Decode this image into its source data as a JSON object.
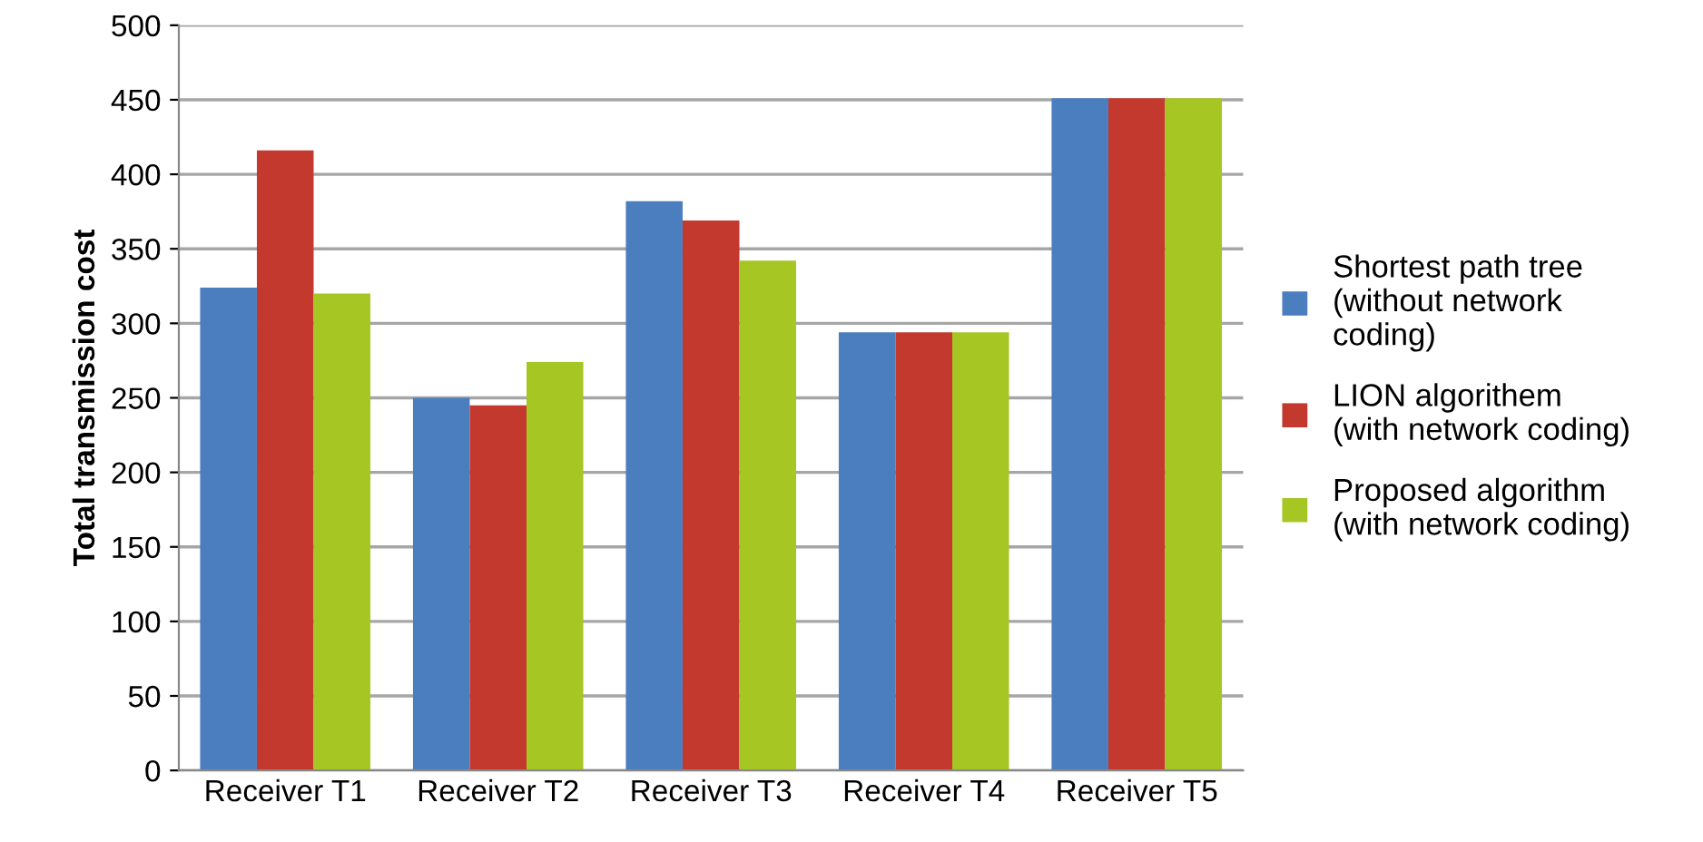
{
  "chart_data": {
    "type": "bar",
    "ylabel": "Total transmission cost",
    "categories": [
      "Receiver T1",
      "Receiver T2",
      "Receiver T3",
      "Receiver T4",
      "Receiver T5"
    ],
    "series": [
      {
        "name": "Shortest path tree\n(without network\ncoding)",
        "color": "#4a7ebf",
        "values": [
          324,
          250,
          382,
          294,
          451
        ]
      },
      {
        "name": "LION algorithem\n(with network coding)",
        "color": "#c4392e",
        "values": [
          416,
          245,
          369,
          294,
          451
        ]
      },
      {
        "name": "Proposed algorithm\n(with network coding)",
        "color": "#a6c623",
        "values": [
          320,
          274,
          342,
          294,
          451
        ]
      }
    ],
    "ylim": [
      0,
      500
    ],
    "yticks": [
      0,
      50,
      100,
      150,
      200,
      250,
      300,
      350,
      400,
      450,
      500
    ],
    "grid": "y",
    "legend": "right"
  }
}
